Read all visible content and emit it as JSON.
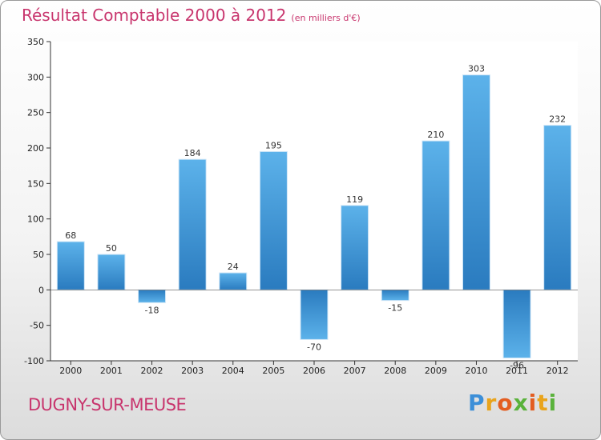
{
  "header": {
    "title": "Résultat Comptable 2000 à 2012",
    "subtitle": "(en milliers d'€)"
  },
  "footer": {
    "city": "DUGNY-SUR-MEUSE",
    "brand": [
      "P",
      "r",
      "o",
      "x",
      "i",
      "t",
      "i"
    ]
  },
  "colors": {
    "title": "#c8356d",
    "bar_light": "#5cb2ea",
    "bar_dark": "#2a7bbf",
    "brand": [
      "#3c8fd8",
      "#e9a41c",
      "#e35d21",
      "#5ab23b",
      "#e35d21",
      "#e9a41c",
      "#5ab23b"
    ]
  },
  "chart_data": {
    "type": "bar",
    "title": "Résultat Comptable 2000 à 2012",
    "ylabel": "(en milliers d'€)",
    "xlabel": "",
    "categories": [
      "2000",
      "2001",
      "2002",
      "2003",
      "2004",
      "2005",
      "2006",
      "2007",
      "2008",
      "2009",
      "2010",
      "2011",
      "2012"
    ],
    "values": [
      68,
      50,
      -18,
      184,
      24,
      195,
      -70,
      119,
      -15,
      210,
      303,
      -96,
      232
    ],
    "ylim": [
      -100,
      350
    ],
    "yticks": [
      -100,
      -50,
      0,
      50,
      100,
      150,
      200,
      250,
      300,
      350
    ],
    "grid": false
  }
}
